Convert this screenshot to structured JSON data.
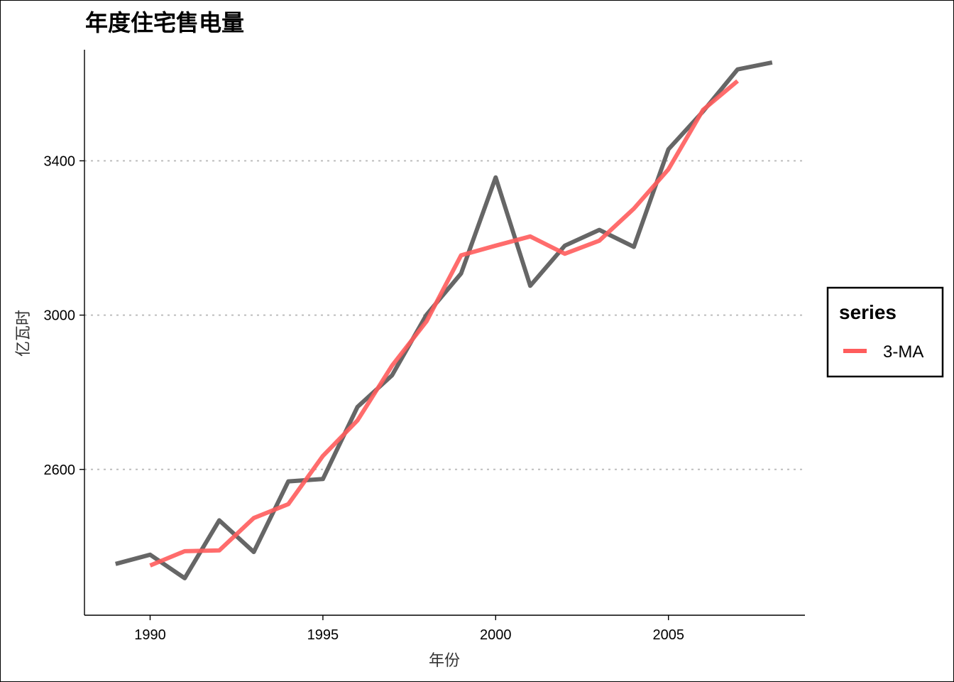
{
  "chart_data": {
    "type": "line",
    "title": "年度住宅售电量",
    "xlabel": "年份",
    "ylabel": "亿瓦时",
    "xlim": [
      1988.1,
      2008.95
    ],
    "ylim": [
      2222,
      3688
    ],
    "x_ticks": [
      1990,
      1995,
      2000,
      2005
    ],
    "y_ticks": [
      2600,
      3000,
      3400
    ],
    "x_tick_labels": [
      "1990",
      "1995",
      "2000",
      "2005"
    ],
    "y_tick_labels": [
      "2600",
      "3000",
      "3400"
    ],
    "grid": "horizontal dotted at major y ticks",
    "legend": {
      "title": "series",
      "position": "right",
      "entries": [
        "3-MA"
      ]
    },
    "series": [
      {
        "color": "#555555",
        "x": [
          1989,
          1990,
          1991,
          1992,
          1993,
          1994,
          1995,
          1996,
          1997,
          1998,
          1999,
          2000,
          2001,
          2002,
          2003,
          2004,
          2005,
          2006,
          2007,
          2008
        ],
        "values": [
          2355,
          2379,
          2318,
          2468,
          2386,
          2569,
          2575,
          2762,
          2844,
          3001,
          3108,
          3357,
          3076,
          3180,
          3221,
          3177,
          3430,
          3528,
          3637,
          3655
        ]
      },
      {
        "name": "3-MA",
        "color": "#ff5c5c",
        "x": [
          1990,
          1991,
          1992,
          1993,
          1994,
          1995,
          1996,
          1997,
          1998,
          1999,
          2000,
          2001,
          2002,
          2003,
          2004,
          2005,
          2006,
          2007
        ],
        "values": [
          2351,
          2388,
          2390,
          2474,
          2510,
          2635,
          2727,
          2869,
          2984,
          3155,
          3180,
          3204,
          3159,
          3193,
          3276,
          3378,
          3532,
          3607
        ]
      }
    ]
  }
}
